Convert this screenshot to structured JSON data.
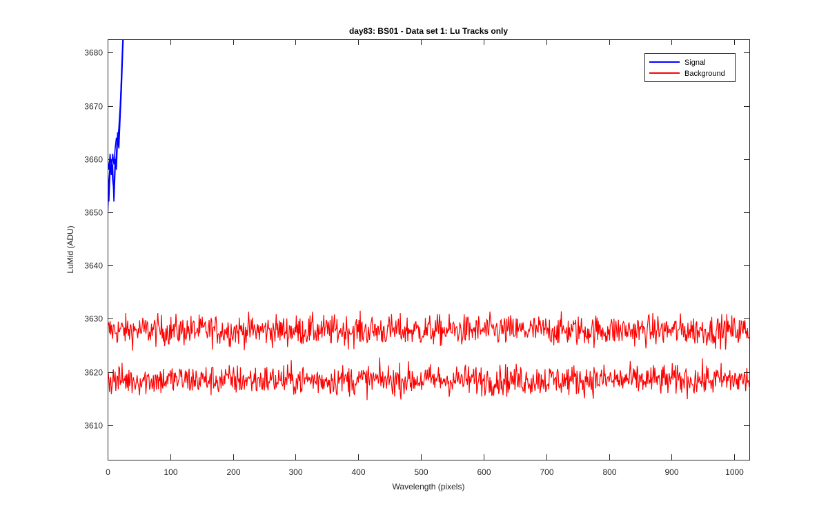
{
  "chart_data": {
    "type": "line",
    "title": "day83: BS01 - Data set 1: Lu Tracks only",
    "xlabel": "Wavelength (pixels)",
    "ylabel": "LuMid (ADU)",
    "xlim": [
      0,
      1024
    ],
    "ylim": [
      3603.5,
      3682.5
    ],
    "xticks": [
      0,
      100,
      200,
      300,
      400,
      500,
      600,
      700,
      800,
      900,
      1000
    ],
    "yticks": [
      3610,
      3620,
      3630,
      3640,
      3650,
      3660,
      3670,
      3680
    ],
    "grid": false,
    "legend_position": "top-right",
    "series": [
      {
        "name": "Signal",
        "color": "#0000ff",
        "description": "Several traces rising steeply from ~3650-3661 at x=0 to above 3682 by x≈25 (leaving plot area)",
        "traces": [
          {
            "x": [
              0,
              2,
              4,
              6,
              8,
              10,
              12,
              14,
              16,
              18,
              20,
              22,
              24,
              26
            ],
            "y": [
              3649,
              3656,
              3659,
              3657,
              3661,
              3659,
              3662,
              3664,
              3663,
              3666,
              3670,
              3675,
              3681,
              3686
            ]
          },
          {
            "x": [
              0,
              2,
              4,
              6,
              8,
              10,
              12,
              14,
              16,
              18,
              20,
              22,
              24,
              26
            ],
            "y": [
              3655,
              3652,
              3658,
              3660,
              3656,
              3654,
              3660,
              3658,
              3664,
              3662,
              3668,
              3673,
              3680,
              3686
            ]
          },
          {
            "x": [
              0,
              2,
              4,
              6,
              8,
              10,
              12,
              14,
              16,
              18,
              20,
              22,
              24,
              26
            ],
            "y": [
              3660,
              3658,
              3661,
              3657,
              3659,
              3652,
              3658,
              3661,
              3665,
              3663,
              3669,
              3676,
              3682,
              3687
            ]
          }
        ]
      },
      {
        "name": "Background",
        "color": "#ff0000",
        "description": "Two noisy flat traces across the full pixel range",
        "traces": [
          {
            "mean": 3627.8,
            "noise_amplitude": 2.6,
            "min": 3622.5,
            "max": 3632.5
          },
          {
            "mean": 3618.5,
            "noise_amplitude": 2.6,
            "min": 3613.5,
            "max": 3623.5
          }
        ]
      }
    ]
  }
}
